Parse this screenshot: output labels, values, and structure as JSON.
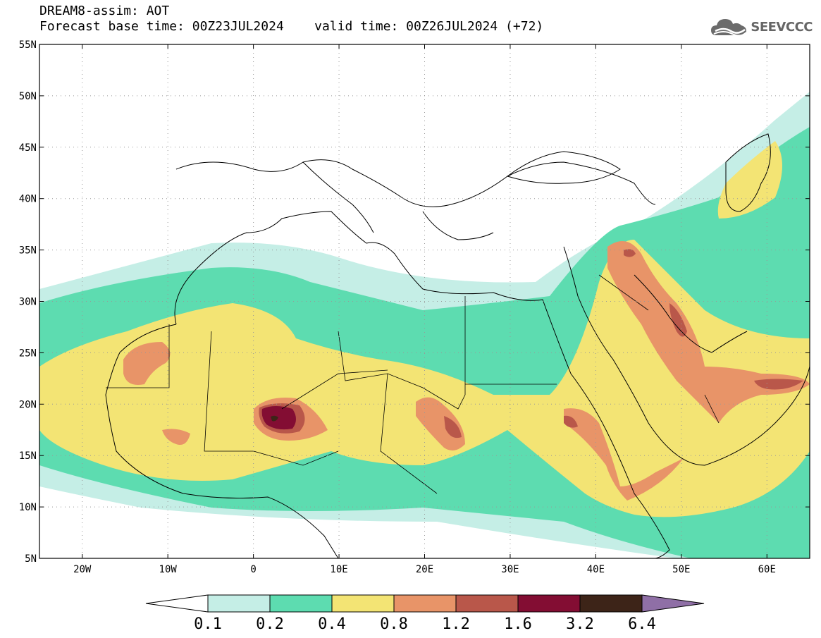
{
  "header": {
    "title_line1": "DREAM8-assim: AOT",
    "title_line2": "Forecast base time: 00Z23JUL2024    valid time: 00Z26JUL2024 (+72)"
  },
  "logo": {
    "text": "SEEVCCC",
    "icon": "cloud-icon"
  },
  "map": {
    "lon_range": [
      -25,
      65
    ],
    "lat_range": [
      5,
      55
    ],
    "lat_ticks": [
      {
        "value": 55,
        "label": "55N"
      },
      {
        "value": 50,
        "label": "50N"
      },
      {
        "value": 45,
        "label": "45N"
      },
      {
        "value": 40,
        "label": "40N"
      },
      {
        "value": 35,
        "label": "35N"
      },
      {
        "value": 30,
        "label": "30N"
      },
      {
        "value": 25,
        "label": "25N"
      },
      {
        "value": 20,
        "label": "20N"
      },
      {
        "value": 15,
        "label": "15N"
      },
      {
        "value": 10,
        "label": "10N"
      },
      {
        "value": 5,
        "label": "5N"
      }
    ],
    "lon_ticks": [
      {
        "value": -20,
        "label": "20W"
      },
      {
        "value": -10,
        "label": "10W"
      },
      {
        "value": 0,
        "label": "0"
      },
      {
        "value": 10,
        "label": "10E"
      },
      {
        "value": 20,
        "label": "20E"
      },
      {
        "value": 30,
        "label": "30E"
      },
      {
        "value": 40,
        "label": "40E"
      },
      {
        "value": 50,
        "label": "50E"
      },
      {
        "value": 60,
        "label": "60E"
      }
    ],
    "grid": "dotted"
  },
  "colorbar": {
    "levels": [
      "0.1",
      "0.2",
      "0.4",
      "0.8",
      "1.2",
      "1.6",
      "3.2",
      "6.4"
    ],
    "colors": [
      "#c5eee6",
      "#5ddcb0",
      "#f3e474",
      "#e89468",
      "#b9574a",
      "#830d33",
      "#3d2418",
      "#8f6fa6"
    ],
    "under_color": "#ffffff"
  },
  "palette": {
    "c1": "#c5eee6",
    "c2": "#5ddcb0",
    "c3": "#f3e474",
    "c4": "#e89468",
    "c5": "#b9574a",
    "c6": "#830d33",
    "c7": "#3d2418"
  }
}
